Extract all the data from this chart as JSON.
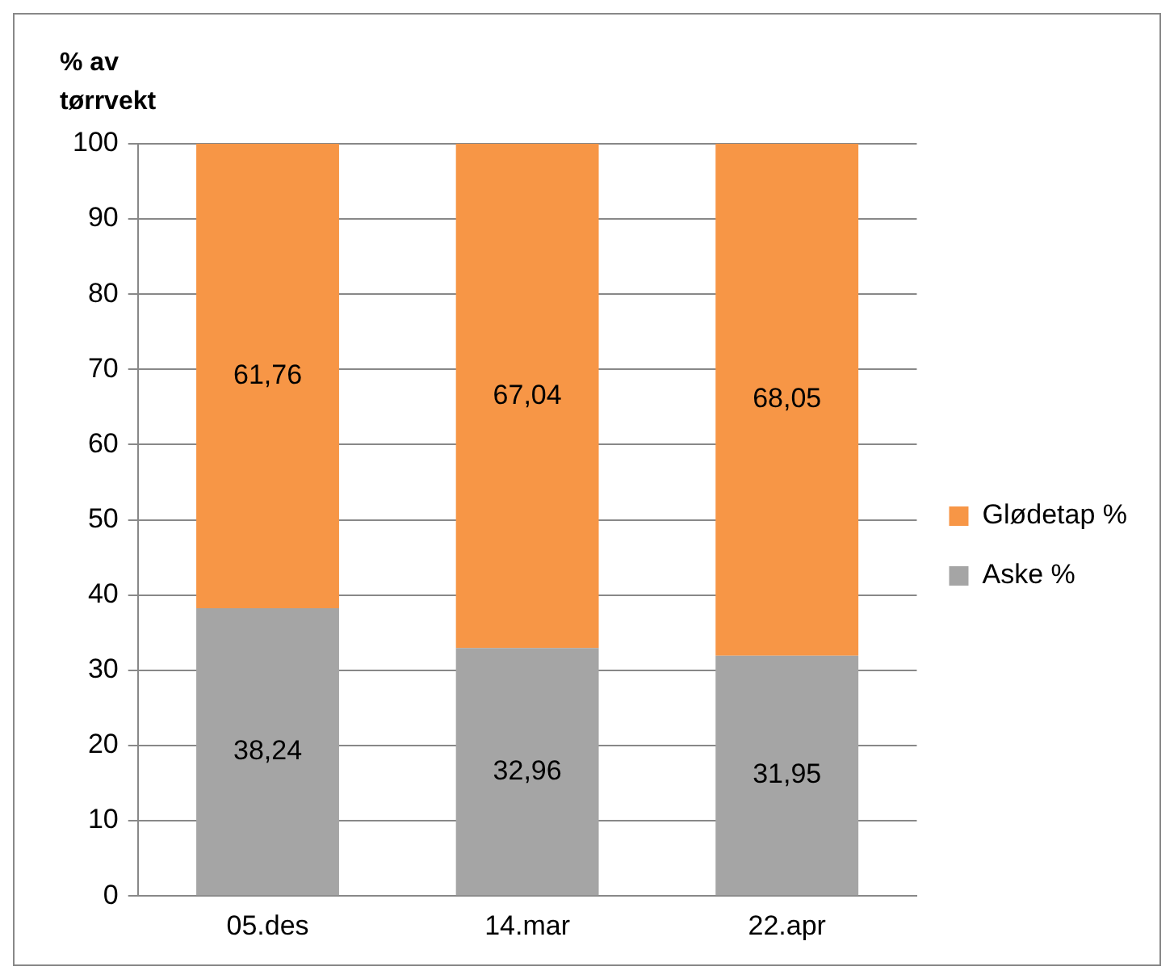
{
  "chart_data": {
    "type": "bar",
    "stacked": true,
    "ylabel": "% av tørrvekt",
    "categories": [
      "05.des",
      "14.mar",
      "22.apr"
    ],
    "series": [
      {
        "name": "Aske %",
        "color": "#a5a5a5",
        "values": [
          38.24,
          32.96,
          31.95
        ],
        "value_labels": [
          "38,24",
          "32,96",
          "31,95"
        ]
      },
      {
        "name": "Glødetap %",
        "color": "#f79646",
        "values": [
          61.76,
          67.04,
          68.05
        ],
        "value_labels": [
          "61,76",
          "67,04",
          "68,05"
        ]
      }
    ],
    "ylim": [
      0,
      100
    ],
    "yticks": [
      0,
      10,
      20,
      30,
      40,
      50,
      60,
      70,
      80,
      90,
      100
    ],
    "grid": "y",
    "legend": "right"
  }
}
